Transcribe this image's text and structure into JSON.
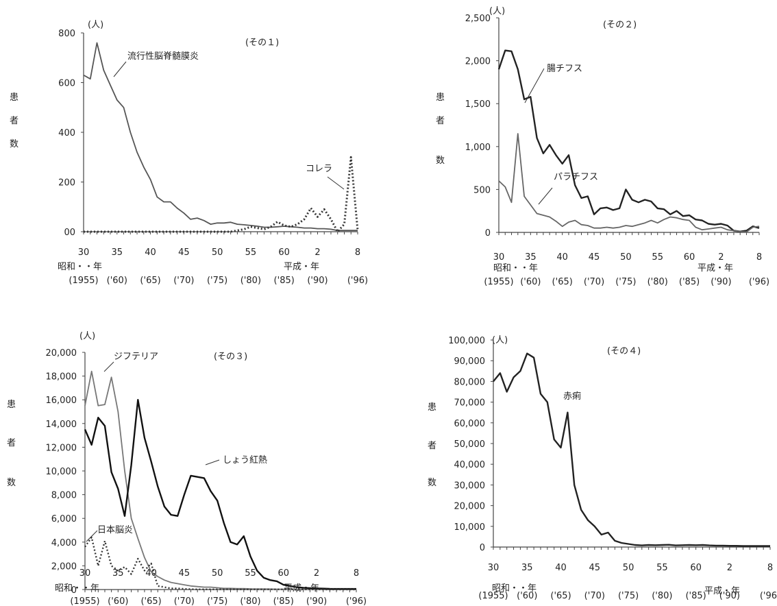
{
  "shared": {
    "ylabel_chars": [
      "患",
      "者",
      "数"
    ],
    "unit": "(人)",
    "era_showa": "昭和・・年",
    "era_heisei": "平成・年"
  },
  "chart_data": [
    {
      "type": "line",
      "title": "(その１)",
      "ylim": [
        0,
        800
      ],
      "yticks": [
        0,
        200,
        400,
        600,
        800
      ],
      "ytick_labels": [
        "00",
        "200",
        "400",
        "600",
        "800"
      ],
      "x_era_ticks": [
        "30",
        "35",
        "40",
        "45",
        "50",
        "55",
        "60",
        "2",
        "8"
      ],
      "x_year_ticks": [
        "(1955)",
        "('60)",
        "('65)",
        "('70)",
        "('75)",
        "('80)",
        "('85)",
        "('90)",
        "('96)"
      ],
      "series": [
        {
          "name": "流行性脳脊髄膜炎",
          "style": "solid",
          "values": [
            630,
            615,
            760,
            650,
            590,
            530,
            500,
            400,
            320,
            260,
            210,
            140,
            120,
            120,
            95,
            75,
            50,
            55,
            45,
            30,
            35,
            35,
            38,
            30,
            28,
            25,
            22,
            18,
            18,
            20,
            22,
            20,
            18,
            15,
            15,
            12,
            12,
            10,
            5,
            5,
            5,
            5
          ]
        },
        {
          "name": "コレラ",
          "style": "dotted",
          "values": [
            0,
            0,
            0,
            0,
            0,
            0,
            0,
            0,
            0,
            0,
            0,
            0,
            0,
            0,
            0,
            0,
            0,
            0,
            0,
            0,
            0,
            0,
            0,
            5,
            10,
            20,
            15,
            10,
            20,
            40,
            25,
            20,
            30,
            50,
            95,
            60,
            90,
            50,
            0,
            30,
            300,
            5
          ]
        }
      ],
      "annotations": [
        {
          "text": "流行性脳脊髄膜炎",
          "series": "流行性脳脊髄膜炎"
        },
        {
          "text": "コレラ",
          "series": "コレラ"
        }
      ]
    },
    {
      "type": "line",
      "title": "(その２)",
      "ylim": [
        0,
        2500
      ],
      "yticks": [
        0,
        500,
        1000,
        1500,
        2000,
        2500
      ],
      "ytick_labels": [
        "0",
        "500",
        "1,000",
        "1,500",
        "2,000",
        "2,500"
      ],
      "x_era_ticks": [
        "30",
        "35",
        "40",
        "45",
        "50",
        "55",
        "60",
        "2",
        "8"
      ],
      "x_year_ticks": [
        "(1955)",
        "('60)",
        "('65)",
        "('70)",
        "('75)",
        "('80)",
        "('85)",
        "('90)",
        "('96)"
      ],
      "series": [
        {
          "name": "腸チフス",
          "style": "solid",
          "values": [
            1900,
            2120,
            2110,
            1900,
            1550,
            1580,
            1100,
            920,
            1020,
            900,
            800,
            900,
            550,
            400,
            420,
            210,
            280,
            290,
            260,
            280,
            500,
            380,
            350,
            380,
            360,
            280,
            270,
            210,
            250,
            190,
            200,
            150,
            140,
            100,
            90,
            100,
            80,
            20,
            10,
            20,
            70,
            50
          ]
        },
        {
          "name": "パラチフス",
          "style": "solid",
          "values": [
            600,
            530,
            350,
            1150,
            420,
            320,
            220,
            200,
            180,
            130,
            70,
            120,
            140,
            90,
            80,
            50,
            50,
            60,
            50,
            60,
            80,
            70,
            90,
            110,
            140,
            110,
            150,
            180,
            170,
            150,
            140,
            60,
            30,
            40,
            50,
            60,
            30,
            20,
            10,
            5,
            60,
            70
          ]
        }
      ],
      "annotations": [
        {
          "text": "腸チフス",
          "series": "腸チフス"
        },
        {
          "text": "パラチフス",
          "series": "パラチフス"
        }
      ]
    },
    {
      "type": "line",
      "title": "(その３)",
      "ylim": [
        0,
        20000
      ],
      "yticks": [
        0,
        2000,
        4000,
        6000,
        8000,
        10000,
        12000,
        14000,
        16000,
        18000,
        20000
      ],
      "ytick_labels": [
        "0",
        "2,000",
        "4,000",
        "6,000",
        "8,000",
        "10,000",
        "12,000",
        "14,000",
        "16,000",
        "18,000",
        "20,000"
      ],
      "x_era_ticks": [
        "30",
        "35",
        "40",
        "45",
        "50",
        "55",
        "60",
        "2",
        "8"
      ],
      "x_year_ticks": [
        "(1955)",
        "('60)",
        "('65)",
        "('70)",
        "('75)",
        "('80)",
        "('85)",
        "('90)",
        "('96)"
      ],
      "series": [
        {
          "name": "ジフテリア",
          "style": "solid",
          "values": [
            15500,
            18400,
            15500,
            15600,
            17900,
            15000,
            10000,
            6000,
            4300,
            2700,
            1500,
            1100,
            800,
            600,
            500,
            400,
            300,
            250,
            200,
            200,
            150,
            100,
            100,
            80,
            80,
            60,
            50,
            50,
            40,
            30,
            20,
            10,
            10,
            10,
            5,
            5,
            5,
            5,
            5,
            5,
            5,
            5
          ]
        },
        {
          "name": "しょう紅熱",
          "style": "solid",
          "values": [
            13500,
            12200,
            14500,
            13800,
            9900,
            8500,
            6200,
            10500,
            16000,
            12800,
            10800,
            8700,
            7000,
            6300,
            6200,
            8000,
            9600,
            9500,
            9400,
            8300,
            7500,
            5600,
            4000,
            3800,
            4500,
            2800,
            1600,
            1000,
            800,
            700,
            400,
            300,
            200,
            150,
            120,
            100,
            80,
            60,
            50,
            50,
            50,
            50
          ]
        },
        {
          "name": "日本脳炎",
          "style": "dotted",
          "values": [
            3600,
            4400,
            2000,
            4100,
            2000,
            1600,
            1900,
            1300,
            2600,
            1600,
            2200,
            300,
            200,
            100,
            100,
            50,
            30,
            20,
            20,
            20,
            20,
            20,
            30,
            20,
            20,
            20,
            20,
            20,
            20,
            20,
            20,
            20,
            10,
            10,
            10,
            10,
            5,
            5,
            5,
            5,
            5,
            5
          ]
        }
      ],
      "annotations": [
        {
          "text": "ジフテリア",
          "series": "ジフテリア"
        },
        {
          "text": "しょう紅熱",
          "series": "しょう紅熱"
        },
        {
          "text": "日本脳炎",
          "series": "日本脳炎"
        }
      ]
    },
    {
      "type": "line",
      "title": "(その４)",
      "ylim": [
        0,
        100000
      ],
      "yticks": [
        0,
        10000,
        20000,
        30000,
        40000,
        50000,
        60000,
        70000,
        80000,
        90000,
        100000
      ],
      "ytick_labels": [
        "0",
        "10,000",
        "20,000",
        "30,000",
        "40,000",
        "50,000",
        "60,000",
        "70,000",
        "80,000",
        "90,000",
        "100,000"
      ],
      "x_era_ticks": [
        "30",
        "35",
        "40",
        "45",
        "50",
        "55",
        "60",
        "2",
        "8"
      ],
      "x_year_ticks": [
        "(1955)",
        "('60)",
        "('65)",
        "('70)",
        "('75)",
        "('80)",
        "('85)",
        "('90)",
        "('96)"
      ],
      "series": [
        {
          "name": "赤痢",
          "style": "solid",
          "values": [
            80000,
            84000,
            75000,
            82000,
            85000,
            93500,
            91500,
            74000,
            70000,
            52000,
            48000,
            65000,
            30000,
            18000,
            13000,
            10000,
            6000,
            7000,
            3000,
            2000,
            1500,
            1000,
            800,
            1000,
            900,
            1000,
            1100,
            800,
            900,
            1000,
            900,
            1000,
            800,
            700,
            700,
            600,
            600,
            500,
            500,
            500,
            500,
            500
          ]
        }
      ],
      "annotations": [
        {
          "text": "赤痢",
          "series": "赤痢"
        }
      ]
    }
  ]
}
